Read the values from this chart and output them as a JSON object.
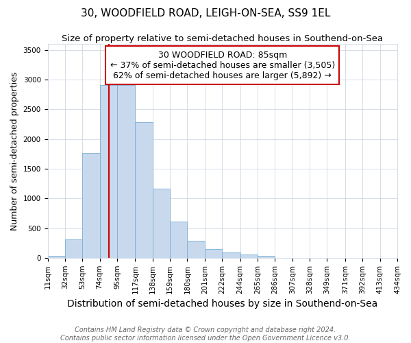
{
  "title": "30, WOODFIELD ROAD, LEIGH-ON-SEA, SS9 1EL",
  "subtitle": "Size of property relative to semi-detached houses in Southend-on-Sea",
  "xlabel": "Distribution of semi-detached houses by size in Southend-on-Sea",
  "ylabel": "Number of semi-detached properties",
  "footer1": "Contains HM Land Registry data © Crown copyright and database right 2024.",
  "footer2": "Contains public sector information licensed under the Open Government Licence v3.0.",
  "bin_edges": [
    11,
    32,
    53,
    74,
    95,
    117,
    138,
    159,
    180,
    201,
    222,
    244,
    265,
    286,
    307,
    328,
    349,
    371,
    392,
    413,
    434
  ],
  "bar_heights": [
    30,
    310,
    1760,
    2910,
    2910,
    2290,
    1170,
    610,
    285,
    145,
    90,
    60,
    28,
    0,
    0,
    0,
    0,
    0,
    0,
    0
  ],
  "bar_color": "#c8d9ee",
  "bar_edge_color": "#7aafd4",
  "property_size": 85,
  "red_line_color": "#cc0000",
  "annotation_text": "30 WOODFIELD ROAD: 85sqm\n← 37% of semi-detached houses are smaller (3,505)\n62% of semi-detached houses are larger (5,892) →",
  "annotation_box_color": "#ffffff",
  "annotation_box_edge": "#cc0000",
  "ylim": [
    0,
    3600
  ],
  "yticks": [
    0,
    500,
    1000,
    1500,
    2000,
    2500,
    3000,
    3500
  ],
  "background_color": "#ffffff",
  "grid_color": "#d0d8e4",
  "title_fontsize": 11,
  "subtitle_fontsize": 9.5,
  "xlabel_fontsize": 10,
  "ylabel_fontsize": 9,
  "tick_fontsize": 7.5,
  "footer_fontsize": 7,
  "annot_fontsize": 9
}
